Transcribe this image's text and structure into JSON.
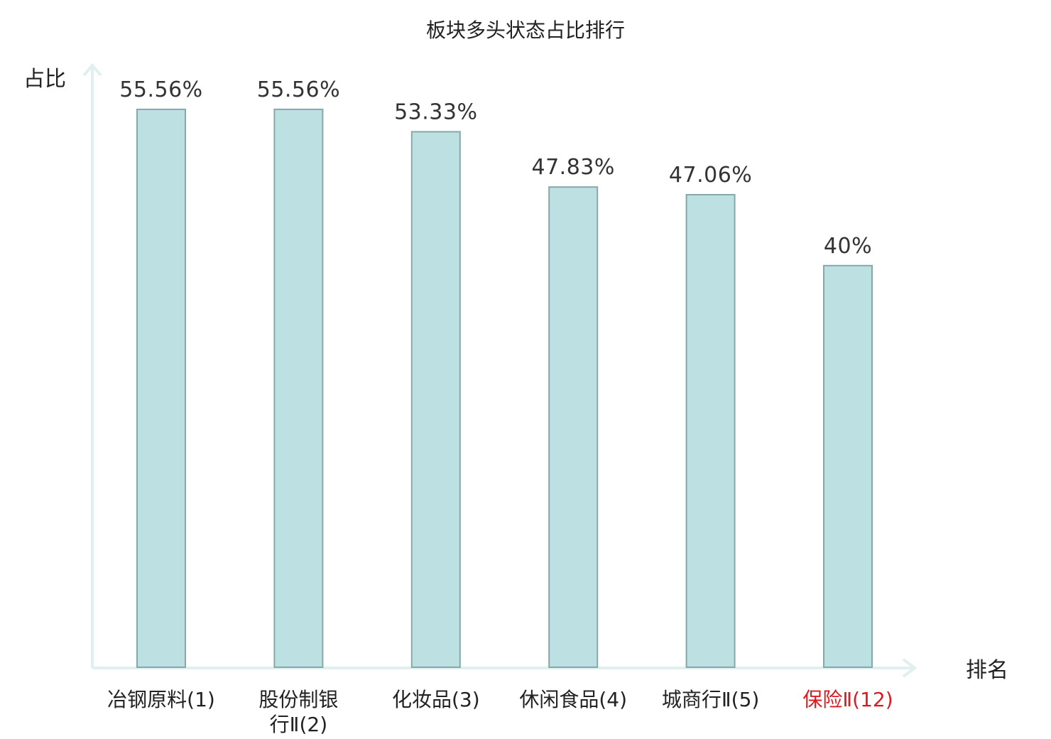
{
  "chart_data": {
    "type": "bar",
    "title": "板块多头状态占比排行",
    "ylabel": "占比",
    "xlabel": "排名",
    "categories": [
      [
        "冶钢原料(1)"
      ],
      [
        "股份制银",
        "行Ⅱ(2)"
      ],
      [
        "化妆品(3)"
      ],
      [
        "休闲食品(4)"
      ],
      [
        "城商行Ⅱ(5)"
      ],
      [
        "保险Ⅱ(12)"
      ]
    ],
    "values": [
      55.56,
      55.56,
      53.33,
      47.83,
      47.06,
      40
    ],
    "value_labels": [
      "55.56%",
      "55.56%",
      "53.33%",
      "47.83%",
      "47.06%",
      "40%"
    ],
    "highlight_index": 5,
    "ylim": [
      0,
      60
    ],
    "grid": false,
    "legend": "none",
    "colors": {
      "bar_fill": "#bde0e2",
      "bar_stroke": "#86a8aa",
      "axis": "#dff0ee",
      "label_text": "#222222",
      "value_text": "#333333",
      "highlight_text": "#e0191f"
    }
  }
}
